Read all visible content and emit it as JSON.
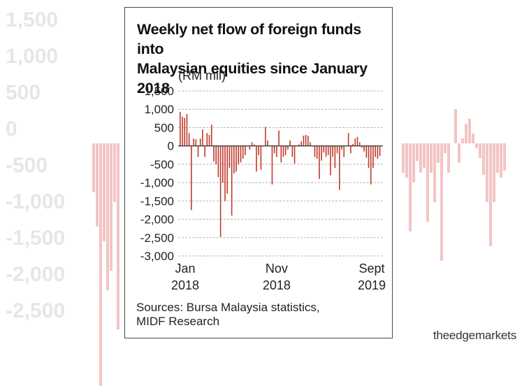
{
  "background_labels": [
    "1,500",
    "1,000",
    "500",
    "0",
    "-500",
    "-1,000",
    "-1,500",
    "-2,000",
    "-2,500"
  ],
  "header": {
    "title_line1": "Weekly net flow of foreign funds into",
    "title_line2": "Malaysian equities since January 2018"
  },
  "footer": {
    "source_line1": "Sources: Bursa Malaysia statistics,",
    "source_line2": "MIDF Research"
  },
  "brand": {
    "name": "theedgemarkets"
  },
  "colors": {
    "bar": "#c0392b",
    "grid": "#b5b5b5",
    "axis": "#222222"
  },
  "chart_data": {
    "type": "bar",
    "ylabel": "(RM mil)",
    "ylim": [
      -3000,
      1500
    ],
    "yticks": [
      1500,
      1000,
      500,
      0,
      -500,
      -1000,
      -1500,
      -2000,
      -2500,
      -3000
    ],
    "ytick_labels": [
      "1,500",
      "1,000",
      "500",
      "0",
      "-500",
      "-1,000",
      "-1,500",
      "-2,000",
      "-2,500",
      "-3,000"
    ],
    "xtick_labels": [
      {
        "month": "Jan",
        "year": "2018",
        "index": 0
      },
      {
        "month": "Nov",
        "year": "2018",
        "index": 43
      },
      {
        "month": "Sept",
        "year": "2019",
        "index": 86
      }
    ],
    "grid": true,
    "period_start": "Jan 2018",
    "period_end": "Sept 2019",
    "values": [
      930,
      800,
      760,
      870,
      350,
      -1750,
      200,
      180,
      -300,
      200,
      450,
      -300,
      350,
      300,
      580,
      -420,
      -500,
      -850,
      -2480,
      -1000,
      -1500,
      -1300,
      -600,
      -1900,
      -750,
      -700,
      -500,
      -450,
      -350,
      -250,
      0,
      -100,
      100,
      40,
      -700,
      -250,
      -650,
      0,
      520,
      150,
      0,
      -1050,
      -200,
      -300,
      420,
      -450,
      -300,
      -250,
      -100,
      150,
      -300,
      -480,
      0,
      40,
      120,
      280,
      300,
      280,
      100,
      0,
      -300,
      -350,
      -900,
      -400,
      -180,
      -300,
      -250,
      -800,
      -300,
      -600,
      -200,
      -1200,
      -100,
      -300,
      0,
      350,
      -200,
      50,
      200,
      250,
      100,
      -50,
      -150,
      -320,
      -600,
      -1050,
      -600,
      -300,
      -350,
      -280
    ]
  }
}
